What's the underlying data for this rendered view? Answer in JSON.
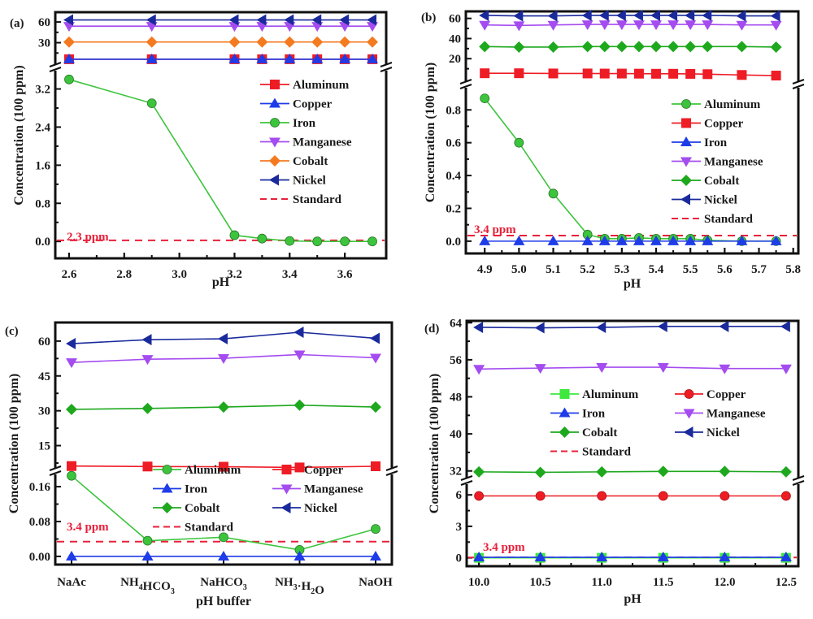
{
  "chart_data": [
    {
      "type": "line",
      "panel": "(a)",
      "xlabel": "pH",
      "ylabel": "Concentration (100 ppm)",
      "xlim": [
        2.55,
        3.75
      ],
      "xticks": [
        2.6,
        2.8,
        3.0,
        3.2,
        3.4,
        3.6
      ],
      "xtick_labels": [
        "2.6",
        "2.8",
        "3.0",
        "3.2",
        "3.4",
        "3.6"
      ],
      "broken_axis": {
        "lower": {
          "ylim": [
            -0.15,
            3.55
          ],
          "yticks": [
            0.0,
            0.8,
            1.6,
            2.4,
            3.2
          ],
          "ytick_labels": [
            "0.0",
            "0.8",
            "1.6",
            "2.4",
            "3.2"
          ]
        },
        "upper": {
          "ylim": [
            0,
            66
          ],
          "yticks": [
            30,
            60
          ],
          "ytick_labels": [
            "30",
            "60"
          ]
        }
      },
      "x": [
        2.6,
        2.9,
        3.2,
        3.3,
        3.4,
        3.5,
        3.6,
        3.7
      ],
      "series": [
        {
          "name": "Aluminum",
          "color": "#ee1c25",
          "marker": "square",
          "axis": "upper",
          "values": [
            6,
            6,
            6,
            6,
            6,
            6,
            6,
            6
          ]
        },
        {
          "name": "Copper",
          "color": "#1e3ce8",
          "marker": "triangle-up",
          "axis": "upper",
          "values": [
            6,
            6,
            6,
            6,
            6,
            6,
            6,
            6
          ]
        },
        {
          "name": "Iron",
          "color": "#3cc43c",
          "marker": "circle",
          "axis": "lower",
          "values": [
            3.4,
            2.9,
            0.13,
            0.06,
            0.01,
            0.0,
            0.0,
            0.0
          ]
        },
        {
          "name": "Manganese",
          "color": "#a44cf0",
          "marker": "triangle-down",
          "axis": "upper",
          "values": [
            54,
            54,
            54,
            54,
            54,
            54,
            54,
            54
          ]
        },
        {
          "name": "Cobalt",
          "color": "#f47a20",
          "marker": "diamond",
          "axis": "upper",
          "values": [
            31,
            31,
            31,
            31,
            31,
            31,
            31,
            31
          ]
        },
        {
          "name": "Nickel",
          "color": "#1a2a9c",
          "marker": "triangle-left",
          "axis": "upper",
          "values": [
            63,
            63,
            63,
            63,
            63,
            63,
            63,
            63
          ]
        }
      ],
      "standard": {
        "name": "Standard",
        "value": 0.023,
        "label": "2.3 ppm",
        "color": "#e8203a"
      },
      "legend_placement": "right-middle"
    },
    {
      "type": "line",
      "panel": "(b)",
      "xlabel": "pH",
      "ylabel": "Concentration (100 ppm)",
      "xlim": [
        4.85,
        5.8
      ],
      "xticks": [
        4.9,
        5.0,
        5.1,
        5.2,
        5.3,
        5.4,
        5.5,
        5.6,
        5.7,
        5.8
      ],
      "xtick_labels": [
        "4.9",
        "5.0",
        "5.1",
        "5.2",
        "5.3",
        "5.4",
        "5.5",
        "5.6",
        "5.7",
        "5.8"
      ],
      "broken_axis": {
        "lower": {
          "ylim": [
            -0.06,
            0.93
          ],
          "yticks": [
            0.0,
            0.2,
            0.4,
            0.6,
            0.8
          ],
          "ytick_labels": [
            "0.0",
            "0.2",
            "0.4",
            "0.6",
            "0.8"
          ]
        },
        "upper": {
          "ylim": [
            0,
            67
          ],
          "yticks": [
            20,
            40,
            60
          ],
          "ytick_labels": [
            "20",
            "40",
            "60"
          ]
        }
      },
      "x": [
        4.9,
        5.0,
        5.1,
        5.2,
        5.25,
        5.3,
        5.35,
        5.4,
        5.45,
        5.5,
        5.55,
        5.65,
        5.75
      ],
      "series": [
        {
          "name": "Aluminum",
          "color": "#3cc43c",
          "marker": "circle",
          "axis": "lower",
          "values": [
            0.87,
            0.6,
            0.29,
            0.04,
            0.015,
            0.015,
            0.02,
            0.015,
            0.015,
            0.015,
            0.005,
            0.0,
            0.0
          ]
        },
        {
          "name": "Copper",
          "color": "#ee1c25",
          "marker": "square",
          "axis": "upper",
          "values": [
            5.5,
            5.5,
            5.3,
            5.3,
            5.2,
            5.2,
            5.1,
            5.0,
            5.0,
            4.9,
            4.6,
            3.8,
            3.2
          ]
        },
        {
          "name": "Iron",
          "color": "#1e3ce8",
          "marker": "triangle-up",
          "axis": "lower",
          "values": [
            0,
            0,
            0,
            0,
            0,
            0,
            0,
            0,
            0,
            0,
            0,
            0,
            0
          ]
        },
        {
          "name": "Manganese",
          "color": "#a44cf0",
          "marker": "triangle-down",
          "axis": "upper",
          "values": [
            53.5,
            53,
            53.5,
            54,
            54,
            54,
            54,
            54,
            54,
            54,
            54,
            53.5,
            53.5
          ]
        },
        {
          "name": "Cobalt",
          "color": "#1ea81e",
          "marker": "diamond",
          "axis": "upper",
          "values": [
            32,
            31.5,
            31.5,
            32,
            32,
            32,
            32,
            32,
            32,
            32,
            32,
            32,
            31.5
          ]
        },
        {
          "name": "Nickel",
          "color": "#1a2a9c",
          "marker": "triangle-left",
          "axis": "upper",
          "values": [
            63,
            62.5,
            62.5,
            63,
            63,
            63,
            63,
            63,
            63,
            63,
            63,
            62.5,
            62.5
          ]
        }
      ],
      "standard": {
        "name": "Standard",
        "value": 0.034,
        "label": "3.4 ppm",
        "color": "#e8203a"
      },
      "legend_placement": "right-middle"
    },
    {
      "type": "line",
      "panel": "(c)",
      "xlabel": "pH buffer",
      "ylabel": "Concentration (100 ppm)",
      "categories": [
        "NaAc",
        "NH4HCO3",
        "NaHCO3",
        "NH3·H2O",
        "NaOH"
      ],
      "category_labels": [
        {
          "main": "NaAc",
          "parts": [
            [
              "NaAc",
              ""
            ]
          ]
        },
        {
          "main": "NH4HCO3",
          "parts": [
            [
              "NH",
              "4"
            ],
            [
              "HCO",
              "3"
            ]
          ]
        },
        {
          "main": "NaHCO3",
          "parts": [
            [
              "NaHCO",
              "3"
            ]
          ]
        },
        {
          "main": "NH3·H2O",
          "parts": [
            [
              "NH",
              "3"
            ],
            [
              "·H",
              "2"
            ],
            [
              "O",
              ""
            ]
          ]
        },
        {
          "main": "NaOH",
          "parts": [
            [
              "NaOH",
              ""
            ]
          ]
        }
      ],
      "broken_axis": {
        "lower": {
          "ylim": [
            -0.015,
            0.19
          ],
          "yticks": [
            0.0,
            0.08,
            0.16
          ],
          "ytick_labels": [
            "0.00",
            "0.08",
            "0.16"
          ]
        },
        "upper": {
          "ylim": [
            4,
            68
          ],
          "yticks": [
            15,
            30,
            45,
            60
          ],
          "ytick_labels": [
            "15",
            "30",
            "45",
            "60"
          ]
        }
      },
      "series": [
        {
          "name": "Aluminum",
          "color": "#3cc43c",
          "marker": "circle",
          "axis": "lower",
          "values": [
            0.185,
            0.036,
            0.044,
            0.015,
            0.063
          ]
        },
        {
          "name": "Copper",
          "color": "#ee1c25",
          "marker": "square",
          "axis": "upper",
          "values": [
            6.2,
            6.0,
            5.9,
            5.6,
            6.1
          ]
        },
        {
          "name": "Iron",
          "color": "#1e3ce8",
          "marker": "triangle-up",
          "axis": "lower",
          "values": [
            0,
            0,
            0,
            0,
            0
          ]
        },
        {
          "name": "Manganese",
          "color": "#a44cf0",
          "marker": "triangle-down",
          "axis": "upper",
          "values": [
            50.8,
            52.2,
            52.6,
            54.2,
            52.8
          ]
        },
        {
          "name": "Cobalt",
          "color": "#1ea81e",
          "marker": "diamond",
          "axis": "upper",
          "values": [
            30.6,
            31.0,
            31.6,
            32.4,
            31.6
          ]
        },
        {
          "name": "Nickel",
          "color": "#1a2a9c",
          "marker": "triangle-left",
          "axis": "upper",
          "values": [
            58.9,
            60.6,
            61.0,
            63.8,
            61.2
          ]
        }
      ],
      "standard": {
        "name": "Standard",
        "value": 0.034,
        "label": "3.4 ppm",
        "color": "#e8203a"
      },
      "legend_placement": "bottom-center (2 columns)"
    },
    {
      "type": "line",
      "panel": "(d)",
      "xlabel": "pH",
      "ylabel": "Concentration (100 ppm)",
      "xlim": [
        9.9,
        12.6
      ],
      "xticks": [
        10.0,
        10.5,
        11.0,
        11.5,
        12.0,
        12.5
      ],
      "xtick_labels": [
        "10.0",
        "10.5",
        "11.0",
        "11.5",
        "12.0",
        "12.5"
      ],
      "broken_axis": {
        "lower": {
          "ylim": [
            -0.8,
            7.1
          ],
          "yticks": [
            0,
            3,
            6
          ],
          "ytick_labels": [
            "0",
            "3",
            "6"
          ]
        },
        "upper": {
          "ylim": [
            30.2,
            64.4
          ],
          "yticks": [
            32,
            40,
            48,
            56,
            64
          ],
          "ytick_labels": [
            "32",
            "40",
            "48",
            "56",
            "64"
          ]
        }
      },
      "x": [
        10.0,
        10.5,
        11.0,
        11.5,
        12.0,
        12.5
      ],
      "series": [
        {
          "name": "Aluminum",
          "color": "#3ee83e",
          "marker": "square",
          "axis": "lower",
          "values": [
            0,
            0,
            0,
            0,
            0,
            0
          ]
        },
        {
          "name": "Copper",
          "color": "#ee1c25",
          "marker": "circle",
          "axis": "lower",
          "values": [
            5.9,
            5.9,
            5.9,
            5.9,
            5.9,
            5.9
          ]
        },
        {
          "name": "Iron",
          "color": "#1e3ce8",
          "marker": "triangle-up",
          "axis": "lower",
          "values": [
            0.05,
            0.05,
            0.05,
            0.05,
            0.05,
            0.05
          ]
        },
        {
          "name": "Manganese",
          "color": "#a44cf0",
          "marker": "triangle-down",
          "axis": "upper",
          "values": [
            54.0,
            54.2,
            54.4,
            54.4,
            54.1,
            54.1
          ]
        },
        {
          "name": "Cobalt",
          "color": "#1ea81e",
          "marker": "diamond",
          "axis": "upper",
          "values": [
            31.8,
            31.7,
            31.8,
            31.9,
            31.9,
            31.8
          ]
        },
        {
          "name": "Nickel",
          "color": "#1a2a9c",
          "marker": "triangle-left",
          "axis": "upper",
          "values": [
            63.0,
            62.9,
            63.0,
            63.2,
            63.2,
            63.2
          ]
        }
      ],
      "standard": {
        "name": "Standard",
        "value": 0.034,
        "label": "3.4 ppm",
        "color": "#e8203a"
      },
      "legend_placement": "center (2 columns)"
    }
  ]
}
